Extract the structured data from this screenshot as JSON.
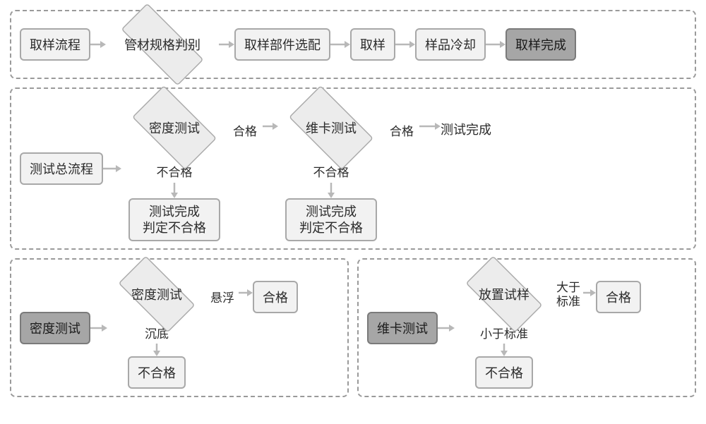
{
  "colors": {
    "border": "#808080",
    "panel_border": "#9a9a9a",
    "box_light_bg": "#f2f2f2",
    "box_light_border": "#a8a8a8",
    "box_dark_bg": "#a6a6a6",
    "box_dark_border": "#7a7a7a",
    "diamond_bg": "#ececec",
    "diamond_border": "#a8a8a8",
    "arrow": "#b8b8b8",
    "text": "#2b2b2b",
    "text_dark": "#1a1a1a"
  },
  "sizes": {
    "node_fontsize": 18,
    "edge_fontsize": 17,
    "panel_radius": 8,
    "box_radius": 6,
    "border_width": 2
  },
  "panel1": {
    "type": "flowchart",
    "nodes": {
      "start": {
        "label": "取样流程",
        "style": "light"
      },
      "spec": {
        "label": "管材规格判别",
        "style": "diamond"
      },
      "select": {
        "label": "取样部件选配",
        "style": "light"
      },
      "sample": {
        "label": "取样",
        "style": "light"
      },
      "cool": {
        "label": "样品冷却",
        "style": "light"
      },
      "done": {
        "label": "取样完成",
        "style": "dark"
      }
    }
  },
  "panel2": {
    "type": "flowchart",
    "nodes": {
      "start": {
        "label": "测试总流程",
        "style": "light"
      },
      "density": {
        "label": "密度测试",
        "style": "diamond"
      },
      "vicat": {
        "label": "维卡测试",
        "style": "diamond"
      },
      "done": {
        "label": "测试完成",
        "style": "plain"
      },
      "fail1": {
        "label": "测试完成\n判定不合格",
        "style": "light"
      },
      "fail2": {
        "label": "测试完成\n判定不合格",
        "style": "light"
      }
    },
    "edges": {
      "pass1": "合格",
      "pass2": "合格",
      "fail1": "不合格",
      "fail2": "不合格"
    }
  },
  "panel3": {
    "type": "flowchart",
    "nodes": {
      "title": {
        "label": "密度测试",
        "style": "dark"
      },
      "test": {
        "label": "密度测试",
        "style": "diamond"
      },
      "pass": {
        "label": "合格",
        "style": "light"
      },
      "fail": {
        "label": "不合格",
        "style": "light"
      }
    },
    "edges": {
      "float": "悬浮",
      "sink": "沉底"
    }
  },
  "panel4": {
    "type": "flowchart",
    "nodes": {
      "title": {
        "label": "维卡测试",
        "style": "dark"
      },
      "place": {
        "label": "放置试样",
        "style": "diamond"
      },
      "pass": {
        "label": "合格",
        "style": "light"
      },
      "fail": {
        "label": "不合格",
        "style": "light"
      }
    },
    "edges": {
      "gt": "大于\n标准",
      "lt": "小于标准"
    }
  }
}
